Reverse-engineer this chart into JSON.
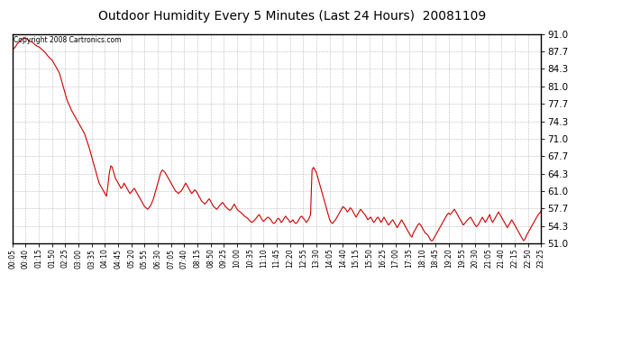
{
  "title": "Outdoor Humidity Every 5 Minutes (Last 24 Hours)  20081109",
  "copyright": "Copyright 2008 Cartronics.com",
  "line_color": "#cc0000",
  "background_color": "#ffffff",
  "grid_color": "#aaaaaa",
  "ylim": [
    51.0,
    91.0
  ],
  "yticks": [
    51.0,
    54.3,
    57.7,
    61.0,
    64.3,
    67.7,
    71.0,
    74.3,
    77.7,
    81.0,
    84.3,
    87.7,
    91.0
  ],
  "xtick_labels": [
    "00:05",
    "00:40",
    "01:15",
    "01:50",
    "02:25",
    "03:00",
    "03:35",
    "04:10",
    "04:45",
    "05:20",
    "05:55",
    "06:30",
    "07:05",
    "07:40",
    "08:15",
    "08:50",
    "09:25",
    "10:00",
    "10:35",
    "11:10",
    "11:45",
    "12:20",
    "12:55",
    "13:30",
    "14:05",
    "14:40",
    "15:15",
    "15:50",
    "16:25",
    "17:00",
    "17:35",
    "18:10",
    "18:45",
    "19:20",
    "19:55",
    "20:30",
    "21:05",
    "21:40",
    "22:15",
    "22:50",
    "23:25"
  ],
  "humidity_values": [
    88.0,
    88.2,
    88.5,
    89.0,
    89.3,
    89.6,
    89.9,
    90.1,
    90.3,
    90.2,
    90.0,
    89.8,
    89.5,
    89.5,
    89.3,
    89.0,
    88.8,
    88.6,
    88.5,
    88.3,
    88.0,
    87.8,
    87.5,
    87.2,
    86.8,
    86.5,
    86.2,
    86.0,
    85.5,
    85.0,
    84.5,
    84.0,
    83.5,
    82.5,
    81.5,
    80.5,
    79.5,
    78.5,
    77.8,
    77.2,
    76.5,
    76.0,
    75.5,
    75.0,
    74.5,
    74.0,
    73.5,
    73.0,
    72.5,
    72.0,
    71.2,
    70.3,
    69.5,
    68.5,
    67.5,
    66.5,
    65.5,
    64.5,
    63.5,
    62.5,
    62.0,
    61.5,
    61.0,
    60.5,
    60.0,
    62.0,
    64.5,
    65.8,
    65.5,
    64.5,
    63.5,
    63.0,
    62.5,
    62.0,
    61.5,
    61.8,
    62.5,
    62.0,
    61.5,
    61.0,
    60.5,
    60.8,
    61.2,
    61.5,
    61.0,
    60.5,
    60.0,
    59.5,
    59.0,
    58.5,
    58.0,
    57.8,
    57.5,
    57.8,
    58.2,
    58.8,
    59.5,
    60.5,
    61.5,
    62.5,
    63.5,
    64.5,
    65.0,
    64.8,
    64.5,
    64.0,
    63.5,
    63.0,
    62.5,
    62.0,
    61.5,
    61.0,
    60.8,
    60.5,
    60.8,
    61.0,
    61.5,
    62.0,
    62.5,
    62.0,
    61.5,
    61.0,
    60.5,
    60.8,
    61.2,
    61.0,
    60.5,
    60.0,
    59.5,
    59.0,
    58.8,
    58.5,
    58.8,
    59.2,
    59.5,
    59.0,
    58.5,
    58.0,
    57.8,
    57.5,
    57.8,
    58.2,
    58.5,
    58.8,
    58.5,
    58.0,
    57.8,
    57.5,
    57.3,
    57.5,
    58.0,
    58.5,
    58.0,
    57.5,
    57.2,
    57.0,
    56.8,
    56.5,
    56.2,
    56.0,
    55.8,
    55.5,
    55.2,
    55.0,
    55.2,
    55.5,
    55.8,
    56.2,
    56.5,
    56.0,
    55.5,
    55.2,
    55.5,
    55.8,
    56.0,
    55.8,
    55.5,
    55.0,
    54.8,
    55.0,
    55.5,
    55.8,
    55.5,
    55.0,
    55.3,
    55.8,
    56.2,
    55.8,
    55.5,
    55.0,
    55.2,
    55.5,
    55.0,
    54.8,
    55.0,
    55.5,
    56.0,
    56.2,
    55.8,
    55.5,
    55.0,
    55.3,
    55.8,
    56.5,
    65.0,
    65.5,
    65.0,
    64.5,
    63.5,
    62.5,
    61.5,
    60.5,
    59.5,
    58.5,
    57.5,
    56.5,
    55.5,
    55.0,
    54.8,
    55.2,
    55.5,
    56.0,
    56.5,
    57.0,
    57.5,
    58.0,
    57.8,
    57.5,
    57.0,
    57.3,
    57.8,
    57.5,
    57.0,
    56.5,
    56.0,
    56.5,
    57.0,
    57.5,
    57.2,
    56.8,
    56.5,
    56.0,
    55.5,
    55.8,
    56.0,
    55.5,
    55.0,
    55.3,
    55.8,
    56.0,
    55.5,
    55.0,
    55.5,
    56.0,
    55.5,
    55.0,
    54.5,
    54.8,
    55.2,
    55.5,
    55.0,
    54.5,
    54.0,
    54.5,
    55.0,
    55.5,
    55.0,
    54.5,
    54.0,
    53.5,
    53.0,
    52.5,
    52.2,
    53.0,
    53.5,
    54.0,
    54.5,
    54.8,
    54.5,
    54.0,
    53.5,
    53.0,
    52.8,
    52.5,
    52.0,
    51.5,
    51.5,
    52.0,
    52.5,
    53.0,
    53.5,
    54.0,
    54.5,
    55.0,
    55.5,
    56.0,
    56.5,
    56.8,
    56.5,
    56.8,
    57.2,
    57.5,
    57.0,
    56.5,
    56.0,
    55.5,
    55.0,
    54.5,
    54.8,
    55.2,
    55.5,
    55.8,
    56.0,
    55.5,
    55.0,
    54.5,
    54.2,
    54.5,
    55.0,
    55.5,
    56.0,
    55.5,
    55.0,
    55.5,
    56.0,
    56.5,
    55.5,
    55.0,
    55.5,
    56.0,
    56.5,
    57.0,
    56.5,
    56.0,
    55.5,
    55.0,
    54.5,
    54.0,
    54.5,
    55.0,
    55.5,
    55.0,
    54.5,
    54.0,
    53.5,
    53.0,
    52.5,
    52.0,
    51.5,
    51.8,
    52.5,
    53.0,
    53.5,
    54.0,
    54.5,
    55.0,
    55.5,
    56.0,
    56.5,
    56.8,
    57.2
  ]
}
